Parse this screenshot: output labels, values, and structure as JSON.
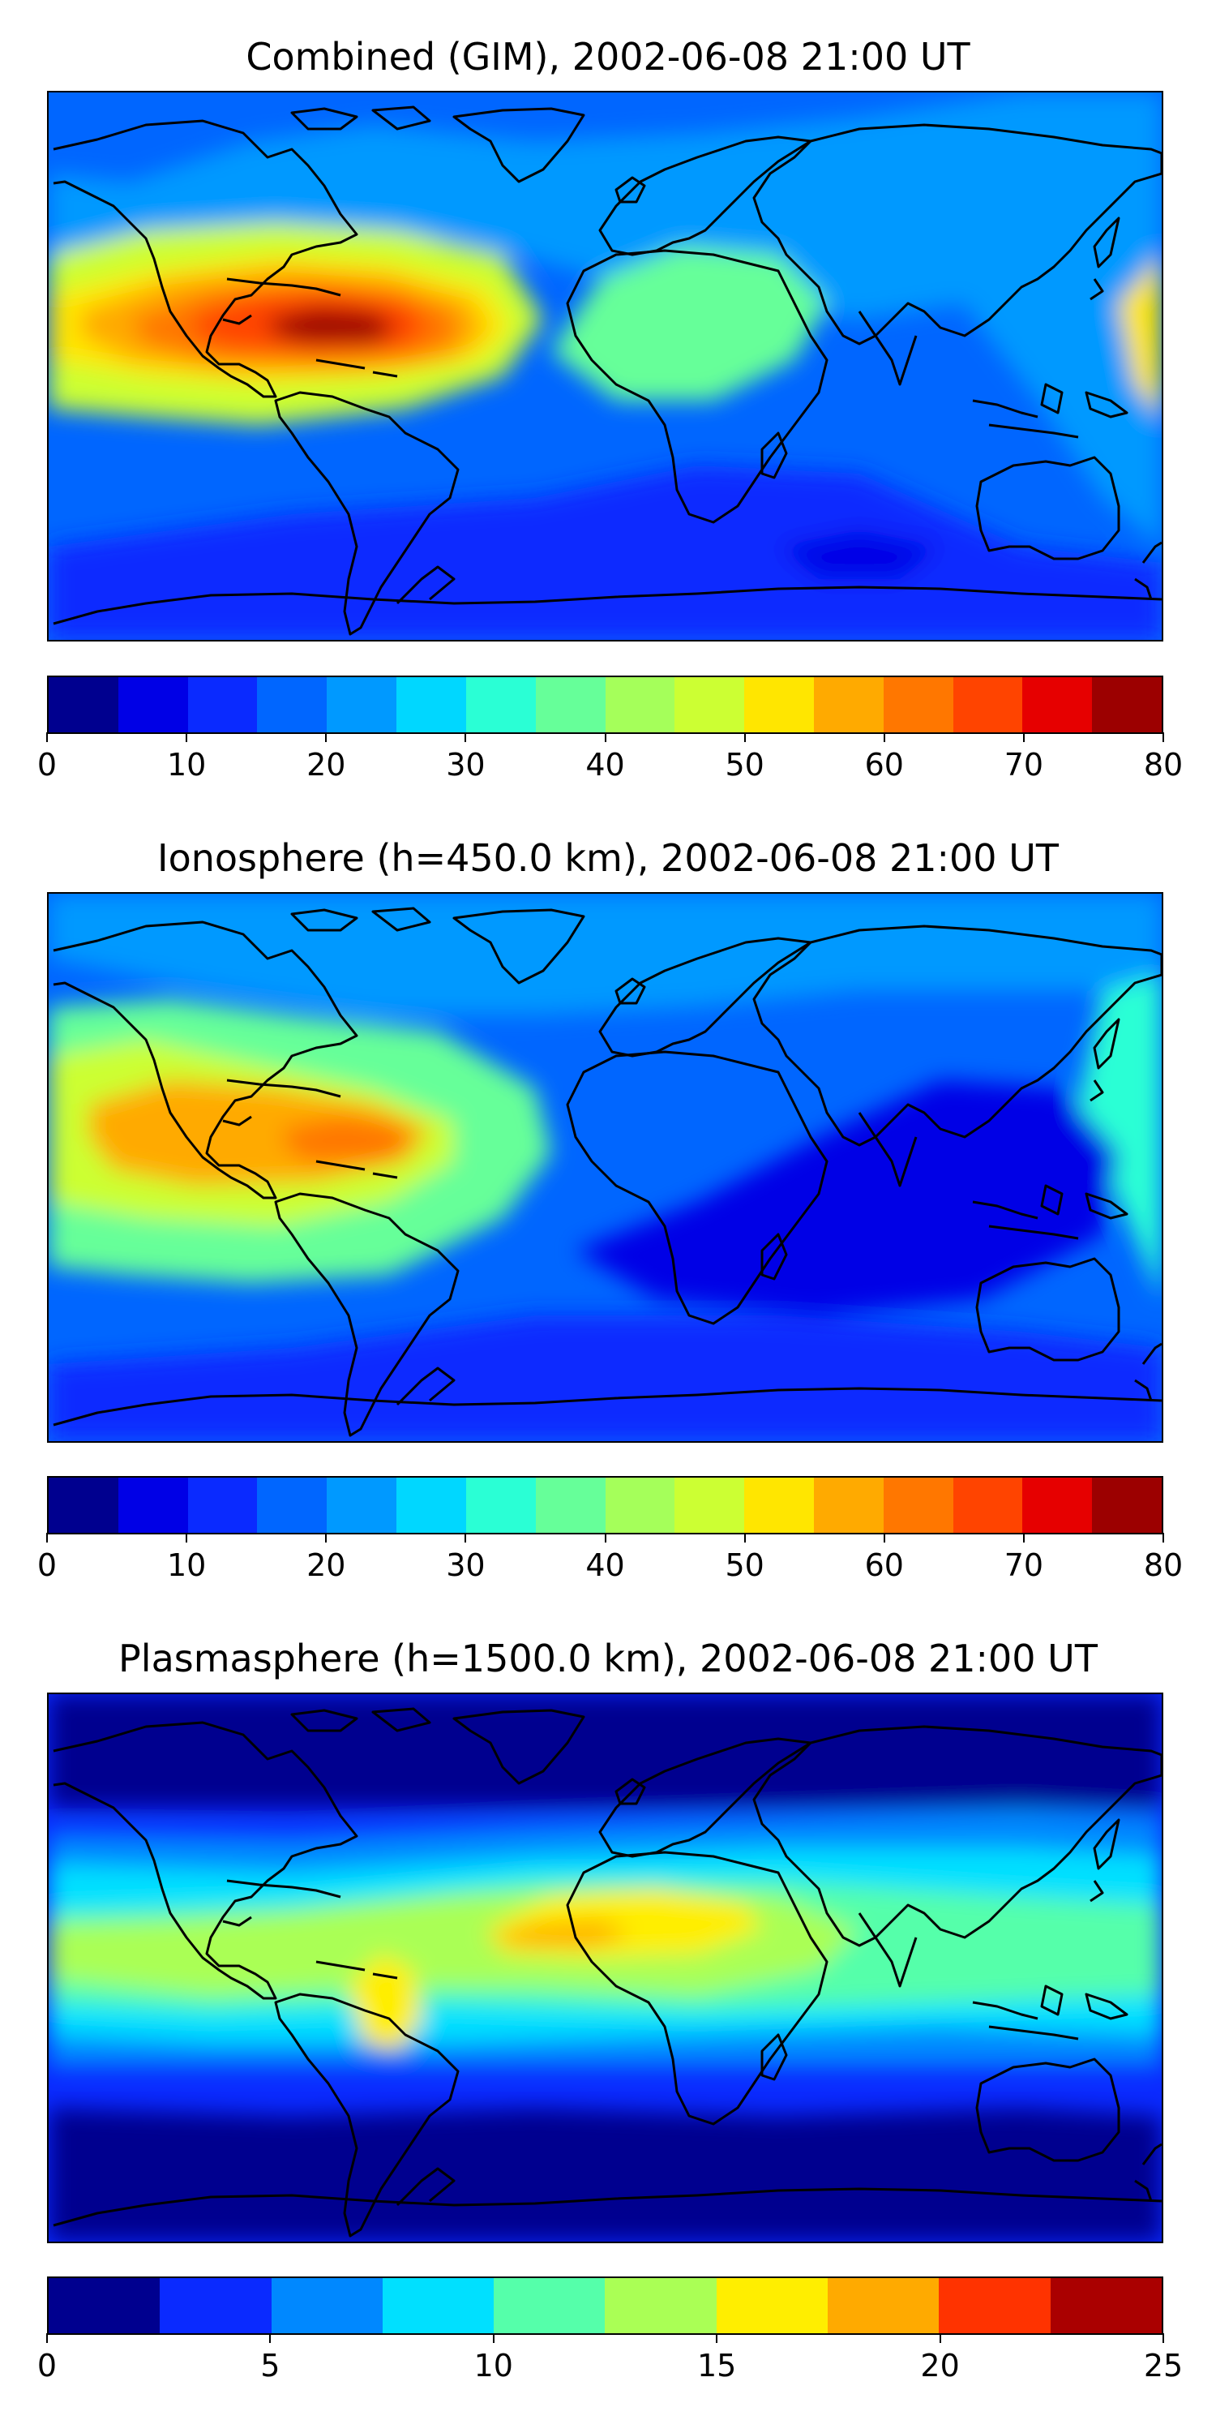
{
  "panels": [
    {
      "title": "Combined (GIM), 2002-06-08 21:00 UT",
      "colorbar": {
        "ticks": [
          "0",
          "10",
          "20",
          "30",
          "40",
          "50",
          "60",
          "70",
          "80"
        ],
        "levels": [
          0,
          5,
          10,
          15,
          20,
          25,
          30,
          35,
          40,
          45,
          50,
          55,
          60,
          65,
          70,
          75,
          80
        ],
        "colors": [
          "#00008f",
          "#0000e6",
          "#0a2aff",
          "#0066ff",
          "#0099ff",
          "#00d7ff",
          "#2affd5",
          "#66ff99",
          "#a5ff5a",
          "#ccff33",
          "#ffe600",
          "#ffaa00",
          "#ff7700",
          "#ff4400",
          "#e60000",
          "#9c0000"
        ]
      },
      "map": {
        "background_level": 15,
        "field_regions": [
          {
            "name": "north-atlantic-band",
            "level": 25
          },
          {
            "name": "asia-pacific-band",
            "level": 25
          },
          {
            "name": "africa-europe",
            "level": 40
          },
          {
            "name": "west-pacific-edge",
            "level": 50
          },
          {
            "name": "pacific-america-anomaly",
            "level": 45
          },
          {
            "name": "anomaly-ring-2",
            "level": 50
          },
          {
            "name": "anomaly-ring-3",
            "level": 55
          },
          {
            "name": "anomaly-ring-4",
            "level": 60
          },
          {
            "name": "anomaly-ring-5",
            "level": 65
          },
          {
            "name": "anomaly-core",
            "level": 75
          },
          {
            "name": "southern-ocean",
            "level": 10
          },
          {
            "name": "south-indian-ocean",
            "level": 5
          }
        ]
      }
    },
    {
      "title": "Ionosphere  (h=450.0 km), 2002-06-08 21:00 UT",
      "colorbar": {
        "ticks": [
          "0",
          "10",
          "20",
          "30",
          "40",
          "50",
          "60",
          "70",
          "80"
        ],
        "levels": [
          0,
          5,
          10,
          15,
          20,
          25,
          30,
          35,
          40,
          45,
          50,
          55,
          60,
          65,
          70,
          75,
          80
        ],
        "colors": [
          "#00008f",
          "#0000e6",
          "#0a2aff",
          "#0066ff",
          "#0099ff",
          "#00d7ff",
          "#2affd5",
          "#66ff99",
          "#a5ff5a",
          "#ccff33",
          "#ffe600",
          "#ffaa00",
          "#ff7700",
          "#ff4400",
          "#e60000",
          "#9c0000"
        ]
      },
      "map": {
        "background_level": 15,
        "field_regions": [
          {
            "name": "north-atlantic-band",
            "level": 20
          },
          {
            "name": "west-pacific-edge",
            "level": 35
          },
          {
            "name": "pacific-america-anomaly",
            "level": 35
          },
          {
            "name": "anomaly-ring-2",
            "level": 45
          },
          {
            "name": "anomaly-ring-3",
            "level": 55
          },
          {
            "name": "anomaly-core",
            "level": 60
          },
          {
            "name": "indian-ocean-low",
            "level": 5
          },
          {
            "name": "southern-ocean",
            "level": 5
          }
        ]
      }
    },
    {
      "title": "Plasmasphere (h=1500.0 km), 2002-06-08 21:00 UT",
      "colorbar": {
        "ticks": [
          "0",
          "5",
          "10",
          "15",
          "20",
          "25"
        ],
        "levels": [
          0,
          2.5,
          5,
          7.5,
          10,
          12.5,
          15,
          17.5,
          20,
          22.5,
          25
        ],
        "colors": [
          "#00008f",
          "#0a2aff",
          "#0088ff",
          "#00e0ff",
          "#55ffaa",
          "#aaff55",
          "#ffee00",
          "#ffaa00",
          "#ff3300",
          "#aa0000"
        ]
      },
      "map": {
        "background_level": 2.5,
        "field_regions": [
          {
            "name": "northern-band",
            "level": 5
          },
          {
            "name": "mid-band",
            "level": 7.5
          },
          {
            "name": "equatorial-band",
            "level": 10
          },
          {
            "name": "equatorial-inner",
            "level": 12.5
          },
          {
            "name": "atlantic-high",
            "level": 15
          },
          {
            "name": "atlantic-core",
            "level": 17.5
          },
          {
            "name": "south-america-high",
            "level": 15
          },
          {
            "name": "southern-low",
            "level": 0
          }
        ]
      }
    }
  ]
}
